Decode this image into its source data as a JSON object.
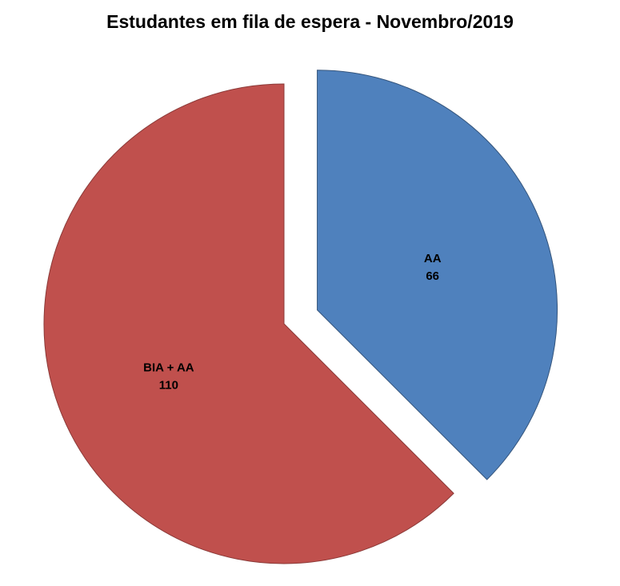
{
  "chart_data": {
    "type": "pie",
    "title": "Estudantes em fila de espera - Novembro/2019",
    "total": 176,
    "start_angle_deg": 0,
    "direction": "clockwise",
    "legend": "none",
    "background_color": "#ffffff",
    "title_color": "#000000",
    "label_color": "#000000",
    "slices": [
      {
        "id": "aa",
        "label": "AA",
        "value": 66,
        "percent": 37.5,
        "color": "#4F81BD",
        "border_color": "#35557C",
        "exploded": true
      },
      {
        "id": "bia-aa",
        "label": "BIA + AA",
        "value": 110,
        "percent": 62.5,
        "color": "#C0504D",
        "border_color": "#8B3A38",
        "exploded": false
      }
    ]
  }
}
